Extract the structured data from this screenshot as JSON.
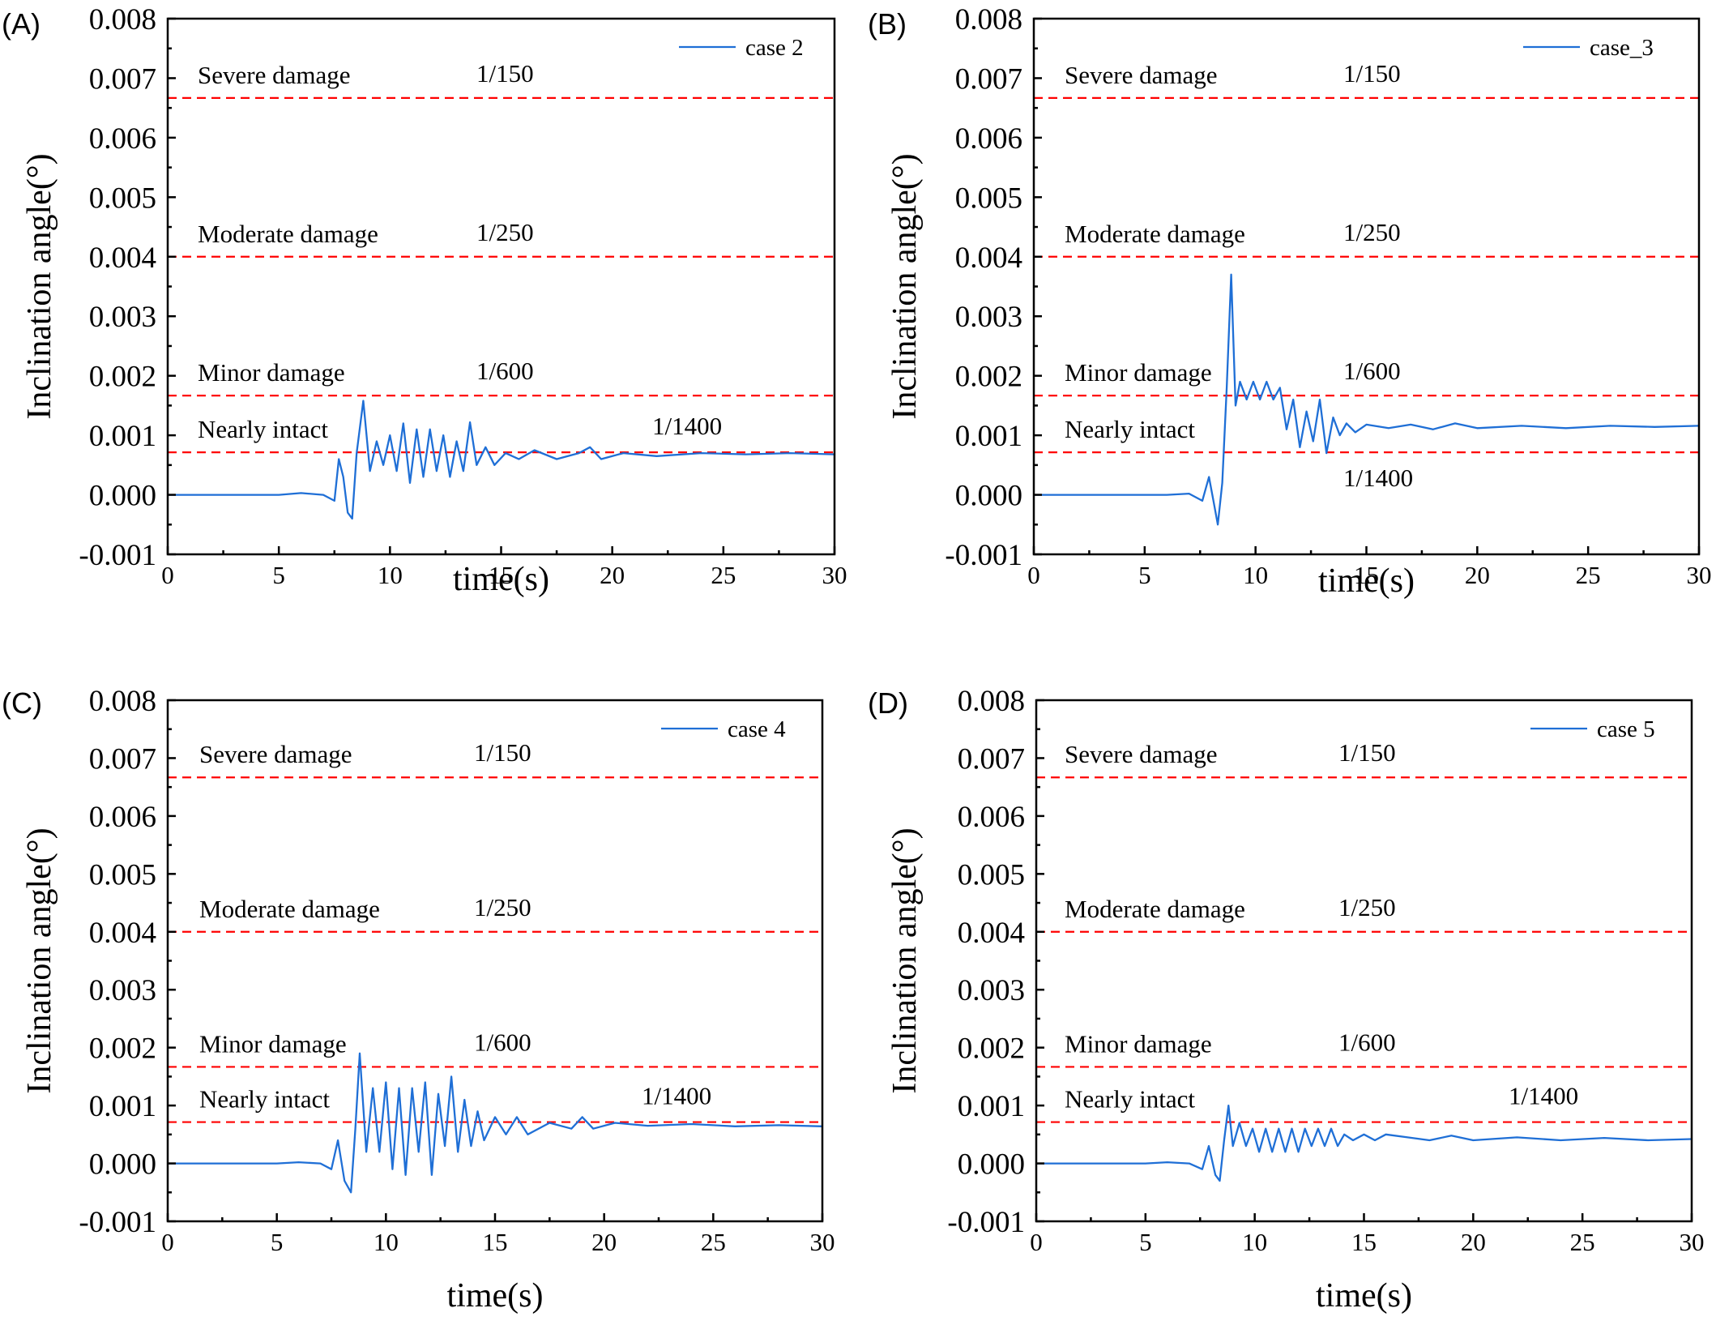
{
  "chart_data": [
    {
      "panel_label": "(A)",
      "type": "line",
      "xlabel": "time(s)",
      "ylabel": "Inclination angle(°)",
      "xlim": [
        0,
        30
      ],
      "ylim": [
        -0.001,
        0.008
      ],
      "xticks": [
        "0",
        "5",
        "10",
        "15",
        "20",
        "25",
        "30"
      ],
      "yticks": [
        "-0.001",
        "0.000",
        "0.001",
        "0.002",
        "0.003",
        "0.004",
        "0.005",
        "0.006",
        "0.007",
        "0.008"
      ],
      "legend_position": "top-right",
      "thresholds": [
        {
          "label": "Severe damage",
          "ratio": "1/150",
          "value": 0.006667
        },
        {
          "label": "Moderate damage",
          "ratio": "1/250",
          "value": 0.004
        },
        {
          "label": "Minor damage",
          "ratio": "1/600",
          "value": 0.001667
        },
        {
          "label": "Nearly intact",
          "ratio": "1/1400",
          "value": 0.000714
        }
      ],
      "series": [
        {
          "name": "case 2",
          "color": "#1f6fd6",
          "x": [
            0,
            5,
            6,
            7,
            7.5,
            7.7,
            7.9,
            8.1,
            8.3,
            8.5,
            8.8,
            9.1,
            9.4,
            9.7,
            10,
            10.3,
            10.6,
            10.9,
            11.2,
            11.5,
            11.8,
            12.1,
            12.4,
            12.7,
            13,
            13.3,
            13.6,
            13.9,
            14.3,
            14.7,
            15.2,
            15.8,
            16.5,
            17.5,
            18.5,
            19,
            19.5,
            20.5,
            22,
            24,
            26,
            28,
            30
          ],
          "y": [
            0,
            0,
            3e-05,
            0,
            -0.0001,
            0.0006,
            0.0003,
            -0.0003,
            -0.0004,
            0.0007,
            0.00158,
            0.0004,
            0.0009,
            0.0005,
            0.001,
            0.0004,
            0.0012,
            0.0002,
            0.0011,
            0.0003,
            0.0011,
            0.0004,
            0.001,
            0.0003,
            0.0009,
            0.0004,
            0.00122,
            0.0005,
            0.0008,
            0.0005,
            0.0007,
            0.0006,
            0.00075,
            0.0006,
            0.0007,
            0.0008,
            0.0006,
            0.0007,
            0.00065,
            0.0007,
            0.00068,
            0.0007,
            0.00068
          ]
        }
      ]
    },
    {
      "panel_label": "(B)",
      "type": "line",
      "xlabel": "time(s)",
      "ylabel": "Inclination angle(°)",
      "xlim": [
        0,
        30
      ],
      "ylim": [
        -0.001,
        0.008
      ],
      "xticks": [
        "0",
        "5",
        "10",
        "15",
        "20",
        "25",
        "30"
      ],
      "yticks": [
        "-0.001",
        "0.000",
        "0.001",
        "0.002",
        "0.003",
        "0.004",
        "0.005",
        "0.006",
        "0.007",
        "0.008"
      ],
      "legend_position": "top-right",
      "thresholds": [
        {
          "label": "Severe damage",
          "ratio": "1/150",
          "value": 0.006667
        },
        {
          "label": "Moderate damage",
          "ratio": "1/250",
          "value": 0.004
        },
        {
          "label": "Minor damage",
          "ratio": "1/600",
          "value": 0.001667
        },
        {
          "label": "Nearly intact",
          "ratio": "1/1400",
          "value": 0.000714
        }
      ],
      "series": [
        {
          "name": "case_3",
          "color": "#1f6fd6",
          "x": [
            0,
            5,
            6,
            7,
            7.6,
            7.9,
            8.1,
            8.3,
            8.5,
            8.7,
            8.9,
            9.1,
            9.3,
            9.6,
            9.9,
            10.2,
            10.5,
            10.8,
            11.1,
            11.4,
            11.7,
            12,
            12.3,
            12.6,
            12.9,
            13.2,
            13.5,
            13.8,
            14.1,
            14.5,
            15,
            16,
            17,
            18,
            19,
            20,
            22,
            24,
            26,
            28,
            30
          ],
          "y": [
            0,
            0,
            0,
            2e-05,
            -0.0001,
            0.0003,
            -0.0001,
            -0.0005,
            0.0002,
            0.0018,
            0.0037,
            0.0015,
            0.0019,
            0.0016,
            0.0019,
            0.0016,
            0.0019,
            0.0016,
            0.0018,
            0.0011,
            0.0016,
            0.0008,
            0.0014,
            0.0009,
            0.0016,
            0.0007,
            0.0013,
            0.001,
            0.0012,
            0.00105,
            0.00118,
            0.00112,
            0.00118,
            0.0011,
            0.0012,
            0.00112,
            0.00116,
            0.00112,
            0.00116,
            0.00114,
            0.00116
          ]
        }
      ]
    },
    {
      "panel_label": "(C)",
      "type": "line",
      "xlabel": "time(s)",
      "ylabel": "Inclination angle(°)",
      "xlim": [
        0,
        30
      ],
      "ylim": [
        -0.001,
        0.008
      ],
      "xticks": [
        "0",
        "5",
        "10",
        "15",
        "20",
        "25",
        "30"
      ],
      "yticks": [
        "-0.001",
        "0.000",
        "0.001",
        "0.002",
        "0.003",
        "0.004",
        "0.005",
        "0.006",
        "0.007",
        "0.008"
      ],
      "legend_position": "top-right",
      "thresholds": [
        {
          "label": "Severe damage",
          "ratio": "1/150",
          "value": 0.006667
        },
        {
          "label": "Moderate damage",
          "ratio": "1/250",
          "value": 0.004
        },
        {
          "label": "Minor damage",
          "ratio": "1/600",
          "value": 0.001667
        },
        {
          "label": "Nearly intact",
          "ratio": "1/1400",
          "value": 0.000714
        }
      ],
      "series": [
        {
          "name": "case 4",
          "color": "#1f6fd6",
          "x": [
            0,
            5,
            6,
            7,
            7.5,
            7.8,
            8.1,
            8.4,
            8.6,
            8.8,
            9.1,
            9.4,
            9.7,
            10,
            10.3,
            10.6,
            10.9,
            11.2,
            11.5,
            11.8,
            12.1,
            12.4,
            12.7,
            13,
            13.3,
            13.6,
            13.9,
            14.2,
            14.5,
            15,
            15.5,
            16,
            16.5,
            17.5,
            18.5,
            19,
            19.5,
            20.5,
            22,
            24,
            26,
            28,
            30
          ],
          "y": [
            0,
            0,
            2e-05,
            0,
            -0.0001,
            0.0004,
            -0.0003,
            -0.0005,
            0.0006,
            0.0019,
            0.0002,
            0.0013,
            0.0002,
            0.0014,
            -0.0001,
            0.0013,
            -0.0002,
            0.0013,
            0.0002,
            0.0014,
            -0.0002,
            0.0012,
            0.0003,
            0.0015,
            0.0002,
            0.0011,
            0.0003,
            0.0009,
            0.0004,
            0.0008,
            0.0005,
            0.0008,
            0.0005,
            0.0007,
            0.0006,
            0.0008,
            0.0006,
            0.0007,
            0.00065,
            0.00068,
            0.00064,
            0.00066,
            0.00064
          ]
        }
      ]
    },
    {
      "panel_label": "(D)",
      "type": "line",
      "xlabel": "time(s)",
      "ylabel": "Inclination angle(°)",
      "xlim": [
        0,
        30
      ],
      "ylim": [
        -0.001,
        0.008
      ],
      "xticks": [
        "0",
        "5",
        "10",
        "15",
        "20",
        "25",
        "30"
      ],
      "yticks": [
        "-0.001",
        "0.000",
        "0.001",
        "0.002",
        "0.003",
        "0.004",
        "0.005",
        "0.006",
        "0.007",
        "0.008"
      ],
      "legend_position": "top-right",
      "thresholds": [
        {
          "label": "Severe damage",
          "ratio": "1/150",
          "value": 0.006667
        },
        {
          "label": "Moderate damage",
          "ratio": "1/250",
          "value": 0.004
        },
        {
          "label": "Minor damage",
          "ratio": "1/600",
          "value": 0.001667
        },
        {
          "label": "Nearly intact",
          "ratio": "1/1400",
          "value": 0.000714
        }
      ],
      "series": [
        {
          "name": "case 5",
          "color": "#1f6fd6",
          "x": [
            0,
            5,
            6,
            7,
            7.6,
            7.9,
            8.2,
            8.4,
            8.6,
            8.8,
            9,
            9.3,
            9.6,
            9.9,
            10.2,
            10.5,
            10.8,
            11.1,
            11.4,
            11.7,
            12,
            12.3,
            12.6,
            12.9,
            13.2,
            13.5,
            13.8,
            14.1,
            14.5,
            15,
            15.5,
            16,
            17,
            18,
            19,
            20,
            22,
            24,
            26,
            28,
            30
          ],
          "y": [
            0,
            0,
            2e-05,
            0,
            -0.0001,
            0.0003,
            -0.0002,
            -0.0003,
            0.0004,
            0.001,
            0.0003,
            0.0007,
            0.0003,
            0.0006,
            0.0002,
            0.0006,
            0.0002,
            0.0006,
            0.0002,
            0.0006,
            0.0002,
            0.0006,
            0.0003,
            0.0006,
            0.0003,
            0.0006,
            0.0003,
            0.0005,
            0.0004,
            0.0005,
            0.0004,
            0.0005,
            0.00045,
            0.0004,
            0.00048,
            0.0004,
            0.00045,
            0.0004,
            0.00044,
            0.0004,
            0.00042
          ]
        }
      ]
    }
  ]
}
